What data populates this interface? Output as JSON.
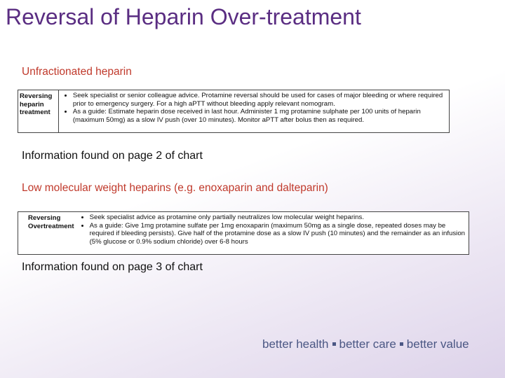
{
  "title": "Reversal of Heparin Over-treatment",
  "sections": [
    {
      "heading": "Unfractionated heparin",
      "table": {
        "label": "Reversing heparin treatment",
        "bullets": [
          "Seek specialist or senior colleague advice. Protamine reversal should be used for cases of major bleeding or where required prior to emergency surgery. For a high aPTT without bleeding apply relevant nomogram.",
          "As a guide: Estimate heparin dose received in last hour. Administer 1 mg protamine sulphate per 100 units of heparin (maximum 50mg) as a slow IV push (over 10 minutes). Monitor aPTT after bolus then as required."
        ]
      },
      "note": "Information found on page 2 of chart"
    },
    {
      "heading": "Low molecular weight heparins (e.g. enoxaparin and dalteparin)",
      "table": {
        "label": "Reversing Overtreatment",
        "bullets": [
          "Seek specialist advice as protamine only partially neutralizes low molecular weight heparins.",
          "As a guide: Give 1mg protamine sulfate per 1mg enoxaparin (maximum 50mg as a single dose, repeated doses may be required if bleeding persists). Give half of the protamine dose as a slow IV push (10 minutes) and the remainder as an infusion (5% glucose or 0.9% sodium chloride) over 6-8 hours"
        ]
      },
      "note": "Information found on page 3 of chart"
    }
  ],
  "footer": [
    "better health",
    "better care",
    "better value"
  ]
}
